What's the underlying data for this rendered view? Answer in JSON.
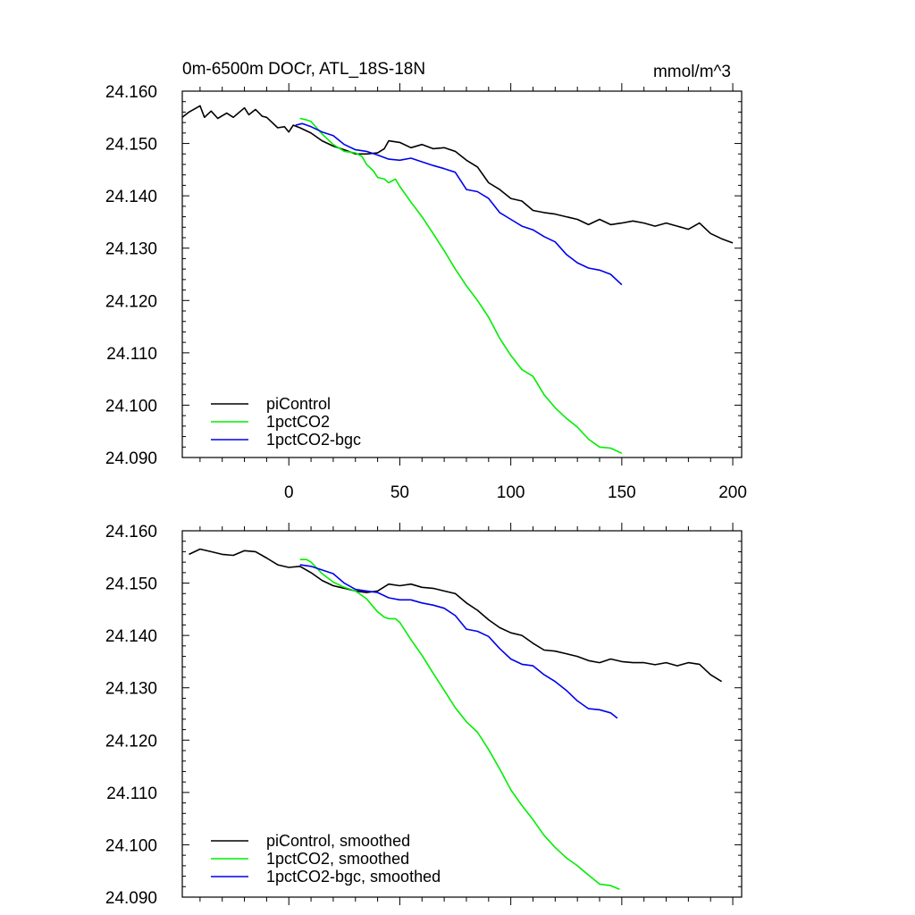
{
  "colors": {
    "piControl": "#000000",
    "1pctCO2": "#00ee00",
    "1pctCO2-bgc": "#0000ee",
    "axis": "#000000",
    "background": "#ffffff"
  },
  "chart_data": [
    {
      "type": "line",
      "title": "0m-6500m DOCr, ATL_18S-18N",
      "units": "mmol/m^3",
      "xlabel": "",
      "ylabel": "",
      "xlim": [
        -48,
        204
      ],
      "ylim": [
        24.09,
        24.16
      ],
      "xticks": [
        0,
        50,
        100,
        150,
        200
      ],
      "xtick_labels": [
        "0",
        "50",
        "100",
        "150",
        "200"
      ],
      "yticks": [
        24.09,
        24.1,
        24.11,
        24.12,
        24.13,
        24.14,
        24.15,
        24.16
      ],
      "ytick_labels": [
        "24.090",
        "24.100",
        "24.110",
        "24.120",
        "24.130",
        "24.140",
        "24.150",
        "24.160"
      ],
      "grid": false,
      "legend_position": "bottom-left",
      "series": [
        {
          "name": "piControl",
          "color": "#000000",
          "x": [
            -48,
            -45,
            -40,
            -38,
            -35,
            -32,
            -28,
            -25,
            -20,
            -18,
            -15,
            -12,
            -10,
            -5,
            -2,
            0,
            2,
            5,
            10,
            15,
            20,
            25,
            30,
            35,
            40,
            43,
            45,
            50,
            55,
            60,
            65,
            70,
            75,
            80,
            85,
            90,
            95,
            100,
            105,
            110,
            115,
            120,
            125,
            130,
            135,
            140,
            145,
            150,
            155,
            160,
            165,
            170,
            175,
            180,
            185,
            190,
            195,
            200
          ],
          "y": [
            24.155,
            24.156,
            24.1572,
            24.155,
            24.1562,
            24.1548,
            24.1558,
            24.155,
            24.1568,
            24.1555,
            24.1565,
            24.1552,
            24.155,
            24.153,
            24.1532,
            24.1522,
            24.1535,
            24.153,
            24.152,
            24.1505,
            24.1495,
            24.1488,
            24.148,
            24.148,
            24.1482,
            24.149,
            24.1505,
            24.1502,
            24.1492,
            24.1498,
            24.149,
            24.1492,
            24.1485,
            24.1468,
            24.1455,
            24.1425,
            24.1412,
            24.1395,
            24.139,
            24.1372,
            24.1368,
            24.1365,
            24.136,
            24.1355,
            24.1345,
            24.1355,
            24.1345,
            24.1348,
            24.1352,
            24.1348,
            24.1342,
            24.1348,
            24.1342,
            24.1336,
            24.1348,
            24.1328,
            24.1318,
            24.131
          ]
        },
        {
          "name": "1pctCO2",
          "color": "#00ee00",
          "x": [
            5,
            8,
            10,
            15,
            20,
            25,
            30,
            33,
            35,
            38,
            40,
            43,
            45,
            48,
            50,
            55,
            60,
            65,
            70,
            75,
            80,
            85,
            90,
            95,
            100,
            105,
            110,
            115,
            120,
            125,
            130,
            135,
            140,
            145,
            150
          ],
          "y": [
            24.1548,
            24.1545,
            24.1542,
            24.1518,
            24.1498,
            24.1485,
            24.1482,
            24.1475,
            24.146,
            24.1448,
            24.1435,
            24.1432,
            24.1425,
            24.1432,
            24.1418,
            24.1388,
            24.136,
            24.1328,
            24.1295,
            24.126,
            24.1228,
            24.12,
            24.1168,
            24.1128,
            24.1095,
            24.1068,
            24.1055,
            24.102,
            24.0995,
            24.0975,
            24.0958,
            24.0935,
            24.092,
            24.0918,
            24.0908
          ]
        },
        {
          "name": "1pctCO2-bgc",
          "color": "#0000ee",
          "x": [
            3,
            6,
            10,
            15,
            20,
            25,
            30,
            35,
            40,
            45,
            50,
            55,
            60,
            65,
            70,
            75,
            80,
            85,
            90,
            95,
            100,
            105,
            110,
            115,
            120,
            125,
            130,
            135,
            140,
            145,
            150
          ],
          "y": [
            24.1535,
            24.1538,
            24.1532,
            24.1522,
            24.1515,
            24.1498,
            24.1488,
            24.1485,
            24.1478,
            24.147,
            24.1468,
            24.1472,
            24.1465,
            24.1458,
            24.1452,
            24.1445,
            24.1412,
            24.1408,
            24.1395,
            24.1368,
            24.1355,
            24.1342,
            24.1335,
            24.1322,
            24.1312,
            24.1288,
            24.1272,
            24.1262,
            24.1258,
            24.125,
            24.123
          ]
        }
      ]
    },
    {
      "type": "line",
      "title": "",
      "units": "",
      "xlabel": "",
      "ylabel": "",
      "xlim": [
        -48,
        204
      ],
      "ylim": [
        24.09,
        24.16
      ],
      "xticks": [
        0,
        50,
        100,
        150,
        200
      ],
      "xtick_labels": [],
      "yticks": [
        24.09,
        24.1,
        24.11,
        24.12,
        24.13,
        24.14,
        24.15,
        24.16
      ],
      "ytick_labels": [
        "24.090",
        "24.100",
        "24.110",
        "24.120",
        "24.130",
        "24.140",
        "24.150",
        "24.160"
      ],
      "grid": false,
      "legend_position": "bottom-left",
      "series": [
        {
          "name": "piControl, smoothed",
          "color": "#000000",
          "x": [
            -45,
            -40,
            -35,
            -30,
            -25,
            -20,
            -15,
            -10,
            -5,
            0,
            5,
            10,
            15,
            20,
            25,
            30,
            35,
            40,
            45,
            50,
            55,
            60,
            65,
            70,
            75,
            80,
            85,
            90,
            95,
            100,
            105,
            110,
            115,
            120,
            125,
            130,
            135,
            140,
            145,
            150,
            155,
            160,
            165,
            170,
            175,
            180,
            185,
            190,
            195
          ],
          "y": [
            24.1555,
            24.1565,
            24.156,
            24.1555,
            24.1553,
            24.1562,
            24.156,
            24.1548,
            24.1535,
            24.153,
            24.1532,
            24.152,
            24.1505,
            24.1495,
            24.149,
            24.1485,
            24.1482,
            24.1485,
            24.1498,
            24.1495,
            24.1498,
            24.1492,
            24.149,
            24.1485,
            24.148,
            24.1462,
            24.1448,
            24.143,
            24.1415,
            24.1405,
            24.14,
            24.1385,
            24.1372,
            24.137,
            24.1365,
            24.136,
            24.1352,
            24.1348,
            24.1355,
            24.135,
            24.1348,
            24.1348,
            24.1344,
            24.1348,
            24.1342,
            24.1348,
            24.1345,
            24.1325,
            24.1312
          ]
        },
        {
          "name": "1pctCO2, smoothed",
          "color": "#00ee00",
          "x": [
            5,
            8,
            10,
            15,
            20,
            25,
            30,
            35,
            40,
            43,
            45,
            48,
            50,
            55,
            60,
            65,
            70,
            75,
            80,
            85,
            90,
            95,
            100,
            105,
            110,
            115,
            120,
            125,
            130,
            135,
            140,
            145,
            149
          ],
          "y": [
            24.1545,
            24.1545,
            24.154,
            24.1518,
            24.1502,
            24.1492,
            24.1485,
            24.147,
            24.1445,
            24.1435,
            24.1432,
            24.1432,
            24.1425,
            24.1392,
            24.1362,
            24.1328,
            24.1295,
            24.1262,
            24.1235,
            24.1215,
            24.1182,
            24.1145,
            24.1105,
            24.1075,
            24.1048,
            24.1018,
            24.0995,
            24.0975,
            24.096,
            24.0942,
            24.0925,
            24.0922,
            24.0915
          ]
        },
        {
          "name": "1pctCO2-bgc, smoothed",
          "color": "#0000ee",
          "x": [
            5,
            10,
            15,
            20,
            25,
            30,
            35,
            40,
            45,
            50,
            55,
            60,
            65,
            70,
            75,
            80,
            85,
            90,
            95,
            100,
            105,
            110,
            115,
            120,
            125,
            130,
            135,
            140,
            145,
            148
          ],
          "y": [
            24.1535,
            24.1532,
            24.1525,
            24.1518,
            24.15,
            24.1488,
            24.1485,
            24.1482,
            24.1472,
            24.1468,
            24.1468,
            24.1462,
            24.1458,
            24.1452,
            24.1438,
            24.1412,
            24.1408,
            24.1398,
            24.1375,
            24.1355,
            24.1345,
            24.1342,
            24.1325,
            24.1312,
            24.1295,
            24.1275,
            24.126,
            24.1258,
            24.1252,
            24.1242
          ]
        }
      ]
    }
  ]
}
